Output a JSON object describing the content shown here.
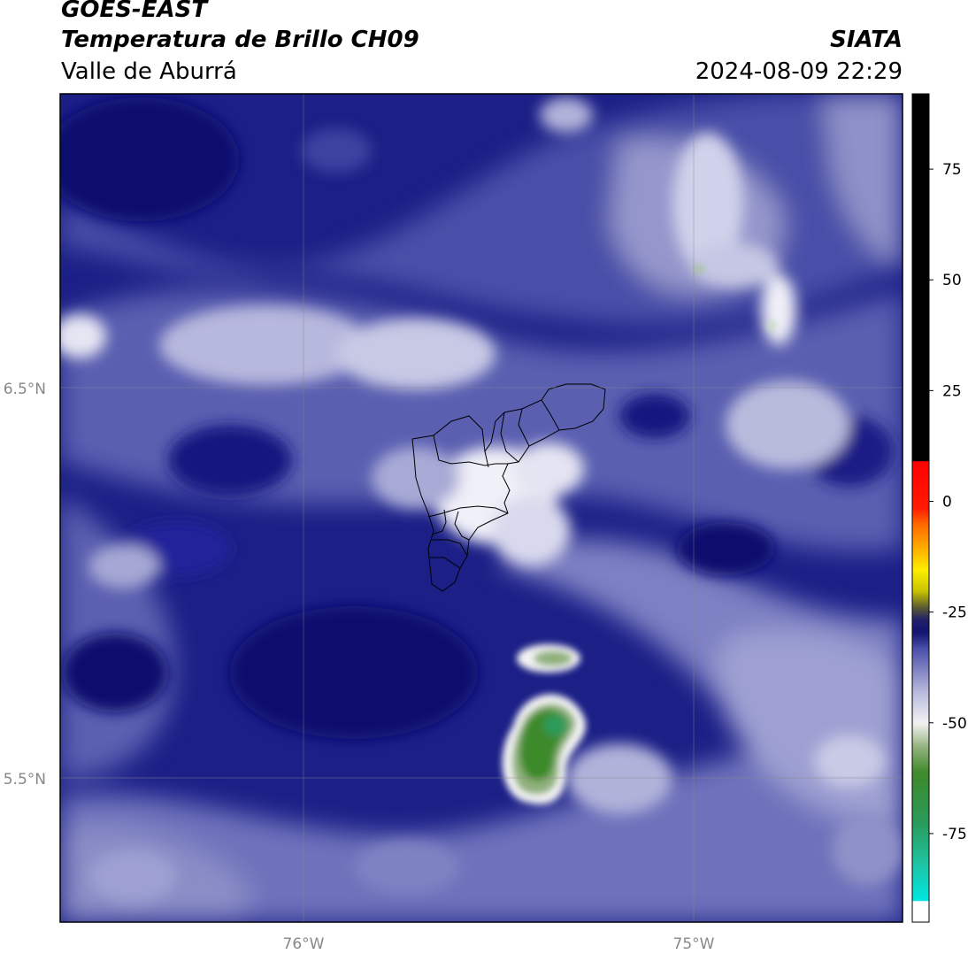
{
  "header": {
    "title_line1": "GOES-EAST",
    "title_line2": "Temperatura de Brillo CH09",
    "agency": "SIATA",
    "region": "Valle de Aburrá",
    "datetime": "2024-08-09 22:29"
  },
  "map": {
    "lat_labels": [
      "6.5°N",
      "5.5°N"
    ],
    "lon_labels": [
      "76°W",
      "75°W"
    ],
    "colors": {
      "background": "#1b1f86",
      "deep": "#0c0f6e",
      "mid": "#3a3f9e",
      "light": "#9799cc",
      "pale": "#d9d9ee",
      "white": "#f6f6fb",
      "green_dark": "#2f7d2a",
      "green_light": "#9fbf8a"
    }
  },
  "colorbar": {
    "labels": [
      "75",
      "50",
      "25",
      "0",
      "-25",
      "-50",
      "-75"
    ],
    "values": [
      75,
      50,
      25,
      0,
      -25,
      -50,
      -75
    ],
    "range": [
      -95,
      92
    ]
  }
}
